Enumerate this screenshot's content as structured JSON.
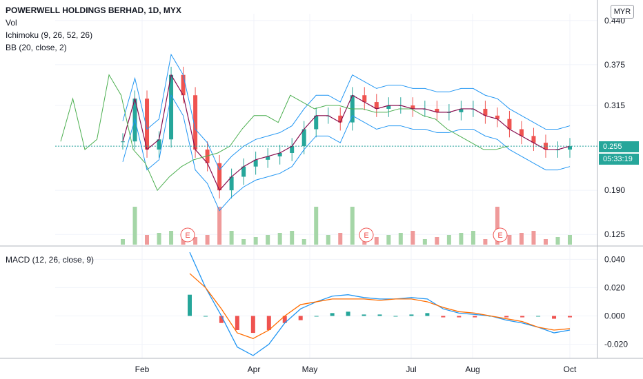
{
  "header": {
    "title": "POWERWELL HOLDINGS BERHAD, 1D, MYX",
    "currency": "MYR",
    "indicators": [
      "Vol",
      "Ichimoku (9, 26, 52, 26)",
      "BB (20, close, 2)"
    ]
  },
  "price_labels": {
    "last": "0.255",
    "countdown": "05:33:19"
  },
  "macd_label": "MACD (12, 26, close, 9)",
  "earnings_marker": "E",
  "colors": {
    "up": "#26a69a",
    "down": "#ef5350",
    "ichimoku_lag": "#4caf50",
    "ichimoku_base": "#880e4f",
    "bb": "#2196f3",
    "macd": "#2196f3",
    "signal": "#ff6d00"
  },
  "chart_data": [
    {
      "type": "candlestick",
      "title": "POWERWELL HOLDINGS BERHAD, 1D, MYX",
      "x_ticks": [
        "Feb",
        "Apr",
        "May",
        "Jul",
        "Aug",
        "Oct"
      ],
      "y_ticks": [
        0.44,
        0.375,
        0.315,
        0.255,
        0.19,
        0.125
      ],
      "ylim": [
        0.11,
        0.45
      ],
      "earnings_events": [
        "Feb",
        "May",
        "Aug"
      ],
      "close_series": {
        "dates": [
          "Jan 15",
          "Jan 25",
          "Feb 1",
          "Feb 8",
          "Feb 15",
          "Feb 22",
          "Mar 1",
          "Mar 8",
          "Mar 15",
          "Mar 22",
          "Mar 29",
          "Apr 5",
          "Apr 12",
          "Apr 19",
          "Apr 26",
          "May 3",
          "May 10",
          "May 17",
          "May 24",
          "May 31",
          "Jun 7",
          "Jun 14",
          "Jun 21",
          "Jun 28",
          "Jul 5",
          "Jul 12",
          "Jul 19",
          "Jul 26",
          "Aug 2",
          "Aug 9",
          "Aug 16",
          "Aug 23",
          "Aug 30",
          "Sep 6",
          "Sep 13",
          "Sep 20",
          "Sep 27",
          "Oct 1"
        ],
        "close": [
          0.262,
          0.325,
          0.25,
          0.265,
          0.36,
          0.33,
          0.25,
          0.23,
          0.19,
          0.21,
          0.225,
          0.235,
          0.24,
          0.245,
          0.255,
          0.28,
          0.3,
          0.3,
          0.29,
          0.33,
          0.32,
          0.31,
          0.315,
          0.315,
          0.31,
          0.31,
          0.305,
          0.305,
          0.31,
          0.31,
          0.3,
          0.295,
          0.28,
          0.27,
          0.26,
          0.25,
          0.25,
          0.255
        ]
      },
      "volume_spikes": [
        "Jan 25",
        "Mar 15",
        "May 10",
        "May 31",
        "Aug 23"
      ]
    },
    {
      "type": "macd",
      "title": "MACD (12, 26, close, 9)",
      "y_ticks": [
        0.04,
        0.02,
        0.0,
        -0.02
      ],
      "ylim": [
        -0.03,
        0.048
      ],
      "series": [
        {
          "name": "MACD",
          "values": [
            0.045,
            0.02,
            0.0,
            -0.022,
            -0.028,
            -0.02,
            -0.005,
            0.005,
            0.01,
            0.014,
            0.015,
            0.013,
            0.012,
            0.012,
            0.013,
            0.012,
            0.005,
            0.002,
            0.001,
            0.0,
            -0.003,
            -0.005,
            -0.008,
            -0.012,
            -0.01
          ]
        },
        {
          "name": "Signal",
          "values": [
            0.03,
            0.02,
            0.005,
            -0.012,
            -0.016,
            -0.01,
            0.0,
            0.008,
            0.01,
            0.012,
            0.012,
            0.012,
            0.011,
            0.012,
            0.012,
            0.01,
            0.006,
            0.003,
            0.002,
            0.0,
            -0.002,
            -0.004,
            -0.008,
            -0.01,
            -0.009
          ]
        }
      ]
    }
  ]
}
